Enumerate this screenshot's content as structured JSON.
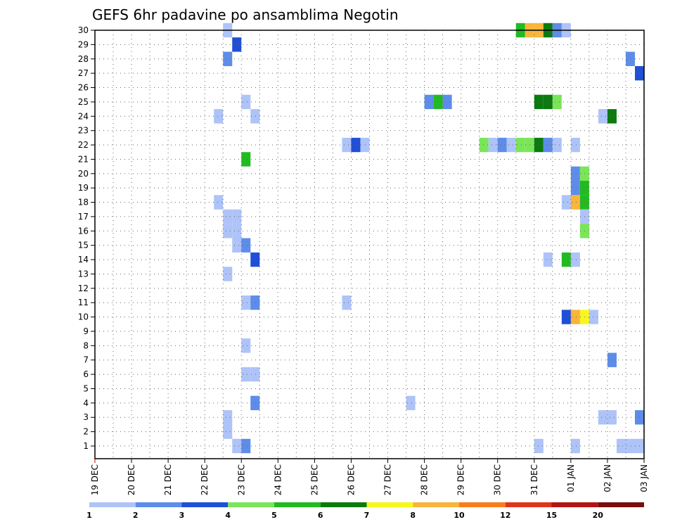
{
  "chart_data": {
    "type": "heatmap",
    "title": "GEFS 6hr padavine po ansamblima Negotin",
    "y_ticks": [
      "1",
      "2",
      "3",
      "4",
      "5",
      "6",
      "7",
      "8",
      "9",
      "10",
      "11",
      "12",
      "13",
      "14",
      "15",
      "16",
      "17",
      "18",
      "19",
      "20",
      "21",
      "22",
      "23",
      "24",
      "25",
      "26",
      "27",
      "28",
      "29",
      "30"
    ],
    "x_ticks": [
      "19 DEC",
      "20 DEC",
      "21 DEC",
      "22 DEC",
      "23 DEC",
      "24 DEC",
      "25 DEC",
      "26 DEC",
      "27 DEC",
      "28 DEC",
      "29 DEC",
      "30 DEC",
      "31 DEC",
      "01 JAN",
      "02 JAN",
      "03 JAN"
    ],
    "x_range": [
      "19 DEC 00Z",
      "03 JAN 00Z"
    ],
    "y_range": [
      1,
      30
    ],
    "grid": true,
    "legend": {
      "position": "bottom",
      "colors": [
        "#aec3f8",
        "#5d8de8",
        "#1f4fd6",
        "#7be55a",
        "#21bb21",
        "#0b7a10",
        "#f7f71e",
        "#f9b43a",
        "#f77d1e",
        "#e0351b",
        "#b21414",
        "#7a0e0e"
      ],
      "labels": [
        "1",
        "2",
        "3",
        "4",
        "5",
        "6",
        "7",
        "8",
        "10",
        "12",
        "15",
        "20"
      ]
    },
    "cells": [
      {
        "m": 30,
        "date": "22 DEC 12Z",
        "v": 1
      },
      {
        "m": 30,
        "date": "30 DEC 12Z",
        "v": 5
      },
      {
        "m": 30,
        "date": "30 DEC 18Z",
        "v": 8
      },
      {
        "m": 30,
        "date": "31 DEC 00Z",
        "v": 8
      },
      {
        "m": 30,
        "date": "31 DEC 06Z",
        "v": 6
      },
      {
        "m": 30,
        "date": "31 DEC 12Z",
        "v": 2
      },
      {
        "m": 30,
        "date": "31 DEC 18Z",
        "v": 1
      },
      {
        "m": 29,
        "date": "22 DEC 18Z",
        "v": 3
      },
      {
        "m": 28,
        "date": "22 DEC 12Z",
        "v": 2
      },
      {
        "m": 28,
        "date": "02 JAN 12Z",
        "v": 2
      },
      {
        "m": 27,
        "date": "02 JAN 18Z",
        "v": 3
      },
      {
        "m": 25,
        "date": "23 DEC 00Z",
        "v": 1
      },
      {
        "m": 25,
        "date": "28 DEC 00Z",
        "v": 2
      },
      {
        "m": 25,
        "date": "28 DEC 06Z",
        "v": 5
      },
      {
        "m": 25,
        "date": "28 DEC 12Z",
        "v": 2
      },
      {
        "m": 25,
        "date": "31 DEC 00Z",
        "v": 6
      },
      {
        "m": 25,
        "date": "31 DEC 06Z",
        "v": 6
      },
      {
        "m": 25,
        "date": "31 DEC 12Z",
        "v": 4
      },
      {
        "m": 24,
        "date": "22 DEC 06Z",
        "v": 1
      },
      {
        "m": 24,
        "date": "23 DEC 06Z",
        "v": 1
      },
      {
        "m": 24,
        "date": "01 JAN 18Z",
        "v": 1
      },
      {
        "m": 24,
        "date": "02 JAN 00Z",
        "v": 6
      },
      {
        "m": 22,
        "date": "25 DEC 18Z",
        "v": 1
      },
      {
        "m": 22,
        "date": "26 DEC 00Z",
        "v": 3
      },
      {
        "m": 22,
        "date": "26 DEC 06Z",
        "v": 1
      },
      {
        "m": 22,
        "date": "29 DEC 12Z",
        "v": 4
      },
      {
        "m": 22,
        "date": "29 DEC 18Z",
        "v": 1
      },
      {
        "m": 22,
        "date": "30 DEC 00Z",
        "v": 2
      },
      {
        "m": 22,
        "date": "30 DEC 06Z",
        "v": 1
      },
      {
        "m": 22,
        "date": "30 DEC 12Z",
        "v": 4
      },
      {
        "m": 22,
        "date": "30 DEC 18Z",
        "v": 4
      },
      {
        "m": 22,
        "date": "31 DEC 00Z",
        "v": 6
      },
      {
        "m": 22,
        "date": "31 DEC 06Z",
        "v": 2
      },
      {
        "m": 22,
        "date": "31 DEC 12Z",
        "v": 1
      },
      {
        "m": 22,
        "date": "01 JAN 00Z",
        "v": 1
      },
      {
        "m": 21,
        "date": "23 DEC 00Z",
        "v": 5
      },
      {
        "m": 20,
        "date": "01 JAN 00Z",
        "v": 2
      },
      {
        "m": 20,
        "date": "01 JAN 06Z",
        "v": 4
      },
      {
        "m": 19,
        "date": "01 JAN 00Z",
        "v": 2
      },
      {
        "m": 19,
        "date": "01 JAN 06Z",
        "v": 5
      },
      {
        "m": 18,
        "date": "22 DEC 06Z",
        "v": 1
      },
      {
        "m": 18,
        "date": "31 DEC 18Z",
        "v": 1
      },
      {
        "m": 18,
        "date": "01 JAN 00Z",
        "v": 8
      },
      {
        "m": 18,
        "date": "01 JAN 06Z",
        "v": 5
      },
      {
        "m": 17,
        "date": "22 DEC 12Z",
        "v": 1
      },
      {
        "m": 17,
        "date": "22 DEC 18Z",
        "v": 1
      },
      {
        "m": 17,
        "date": "01 JAN 06Z",
        "v": 1
      },
      {
        "m": 16,
        "date": "22 DEC 12Z",
        "v": 1
      },
      {
        "m": 16,
        "date": "22 DEC 18Z",
        "v": 1
      },
      {
        "m": 16,
        "date": "01 JAN 06Z",
        "v": 4
      },
      {
        "m": 15,
        "date": "22 DEC 18Z",
        "v": 1
      },
      {
        "m": 15,
        "date": "23 DEC 00Z",
        "v": 2
      },
      {
        "m": 14,
        "date": "23 DEC 06Z",
        "v": 3
      },
      {
        "m": 14,
        "date": "31 DEC 06Z",
        "v": 1
      },
      {
        "m": 14,
        "date": "31 DEC 18Z",
        "v": 5
      },
      {
        "m": 14,
        "date": "01 JAN 00Z",
        "v": 1
      },
      {
        "m": 13,
        "date": "22 DEC 12Z",
        "v": 1
      },
      {
        "m": 11,
        "date": "23 DEC 00Z",
        "v": 1
      },
      {
        "m": 11,
        "date": "23 DEC 06Z",
        "v": 2
      },
      {
        "m": 11,
        "date": "25 DEC 18Z",
        "v": 1
      },
      {
        "m": 10,
        "date": "31 DEC 18Z",
        "v": 3
      },
      {
        "m": 10,
        "date": "01 JAN 00Z",
        "v": 8
      },
      {
        "m": 10,
        "date": "01 JAN 06Z",
        "v": 7
      },
      {
        "m": 10,
        "date": "01 JAN 12Z",
        "v": 1
      },
      {
        "m": 8,
        "date": "23 DEC 00Z",
        "v": 1
      },
      {
        "m": 7,
        "date": "02 JAN 00Z",
        "v": 2
      },
      {
        "m": 6,
        "date": "23 DEC 00Z",
        "v": 1
      },
      {
        "m": 6,
        "date": "23 DEC 06Z",
        "v": 1
      },
      {
        "m": 4,
        "date": "23 DEC 06Z",
        "v": 2
      },
      {
        "m": 4,
        "date": "27 DEC 12Z",
        "v": 1
      },
      {
        "m": 3,
        "date": "22 DEC 12Z",
        "v": 1
      },
      {
        "m": 3,
        "date": "01 JAN 18Z",
        "v": 1
      },
      {
        "m": 3,
        "date": "02 JAN 00Z",
        "v": 1
      },
      {
        "m": 3,
        "date": "02 JAN 18Z",
        "v": 2
      },
      {
        "m": 2,
        "date": "22 DEC 12Z",
        "v": 1
      },
      {
        "m": 1,
        "date": "22 DEC 18Z",
        "v": 1
      },
      {
        "m": 1,
        "date": "23 DEC 00Z",
        "v": 2
      },
      {
        "m": 1,
        "date": "31 DEC 00Z",
        "v": 1
      },
      {
        "m": 1,
        "date": "01 JAN 00Z",
        "v": 1
      },
      {
        "m": 1,
        "date": "02 JAN 06Z",
        "v": 1
      },
      {
        "m": 1,
        "date": "02 JAN 12Z",
        "v": 1
      },
      {
        "m": 1,
        "date": "02 JAN 18Z",
        "v": 1
      }
    ]
  }
}
